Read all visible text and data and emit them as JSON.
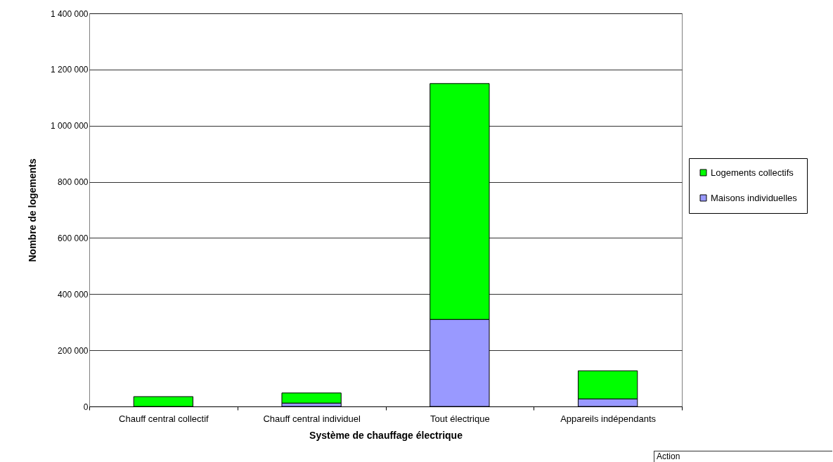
{
  "chart_data": {
    "type": "bar",
    "stacked": true,
    "xlabel": "Système de chauffage électrique",
    "ylabel": "Nombre de logements",
    "categories": [
      "Chauff central collectif",
      "Chauff central individuel",
      "Tout électrique",
      "Appareils indépendants"
    ],
    "series": [
      {
        "name": "Maisons individuelles",
        "color": "#9999ff",
        "values": [
          0,
          12000,
          310000,
          27000
        ]
      },
      {
        "name": "Logements collectifs",
        "color": "#00ff00",
        "values": [
          35000,
          36000,
          840000,
          100000
        ]
      }
    ],
    "ylim": [
      0,
      1400000
    ],
    "yticks": [
      0,
      {
        "value": 200000,
        "label": "200 000"
      },
      {
        "value": 400000,
        "label": "400 000"
      },
      {
        "value": 600000,
        "label": "600 000"
      },
      {
        "value": 800000,
        "label": "800 000"
      },
      {
        "value": 1000000,
        "label": "1 000 000"
      },
      {
        "value": 1200000,
        "label": "1 200 000"
      },
      {
        "value": 1400000,
        "label": "1 400 000"
      }
    ],
    "grid": "y",
    "legend": "right",
    "annotations": [
      "Action"
    ]
  }
}
